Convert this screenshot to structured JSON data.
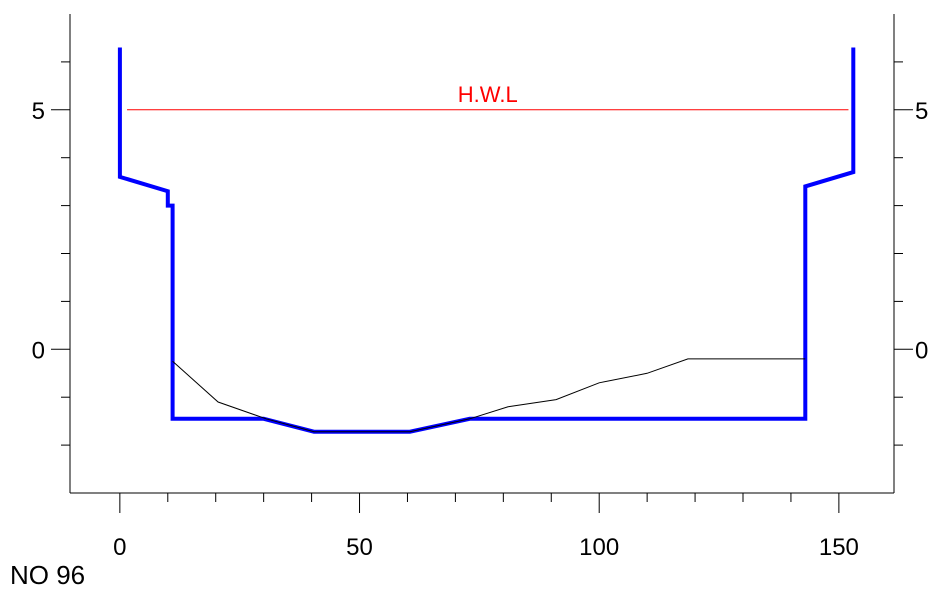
{
  "section_label": "NO 96",
  "chart_data": {
    "type": "line",
    "title": "",
    "xlabel": "",
    "ylabel": "",
    "xlim": [
      -10.4,
      161.5
    ],
    "ylim": [
      -3.0,
      7.0
    ],
    "x_ticks_major": [
      0,
      50,
      100,
      150
    ],
    "x_tick_labels": [
      "0",
      "50",
      "100",
      "150"
    ],
    "x_ticks_minor": [
      10,
      20,
      30,
      40,
      60,
      70,
      80,
      90,
      110,
      120,
      130,
      140
    ],
    "y_ticks_major": [
      0,
      5
    ],
    "y_tick_labels": [
      "0",
      "5"
    ],
    "y_ticks_minor": [
      -2,
      -1,
      1,
      2,
      3,
      4,
      6
    ],
    "grid": false,
    "series": [
      {
        "name": "",
        "color": "#0000ff",
        "x": [
          0,
          0,
          10,
          10,
          11,
          11,
          30,
          40.5,
          60.5,
          73,
          143,
          143,
          153,
          153
        ],
        "y": [
          6.3,
          3.6,
          3.3,
          3.0,
          3.0,
          -1.45,
          -1.45,
          -1.72,
          -1.72,
          -1.45,
          -1.45,
          3.4,
          3.7,
          6.3
        ]
      },
      {
        "name": "",
        "color": "#000000",
        "x": [
          11,
          20.5,
          30.5,
          40.5,
          60.5,
          73,
          81,
          91,
          100,
          110,
          118.5,
          143
        ],
        "y": [
          -0.25,
          -1.1,
          -1.45,
          -1.72,
          -1.72,
          -1.45,
          -1.2,
          -1.05,
          -0.7,
          -0.5,
          -0.2,
          -0.2
        ]
      }
    ],
    "annotations": [
      {
        "label": "H.W.L",
        "color": "#ff0000",
        "x_start": 1.5,
        "x_end": 152,
        "y": 5.0
      }
    ]
  }
}
